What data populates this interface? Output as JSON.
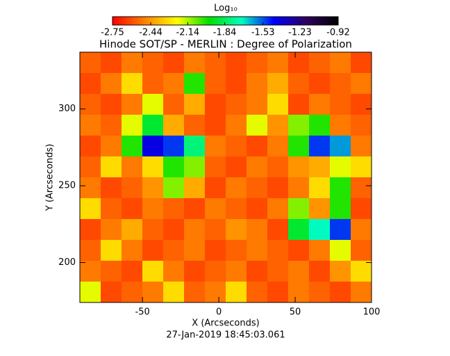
{
  "chart_data": {
    "type": "heatmap",
    "title": "Hinode SOT/SP - MERLIN : Degree of Polarization",
    "x_label": "X (Arcseconds)",
    "y_label": "Y (Arcseconds)",
    "footer": "27-Jan-2019 18:45:03.061",
    "colorbar_label": "Log₁₀",
    "clim": [
      -2.75,
      -0.92
    ],
    "cticks": [
      -2.75,
      -2.44,
      -2.14,
      -1.84,
      -1.53,
      -1.23,
      -0.92
    ],
    "colormap": [
      "#ff0000",
      "#ff8000",
      "#ffff00",
      "#00e000",
      "#00ffc0",
      "#0000ff",
      "#300060",
      "#000000"
    ],
    "xlim": [
      -91,
      100
    ],
    "ylim": [
      174,
      337
    ],
    "xticks": [
      -50,
      0,
      50,
      100
    ],
    "yticks": [
      200,
      250,
      300
    ],
    "z": [
      [
        -2.55,
        -2.6,
        -2.5,
        -2.55,
        -2.6,
        -2.5,
        -2.55,
        -2.6,
        -2.55,
        -2.5,
        -2.6,
        -2.55,
        -2.5,
        -2.6
      ],
      [
        -2.6,
        -2.5,
        -2.3,
        -2.55,
        -2.5,
        -2.0,
        -2.55,
        -2.6,
        -2.5,
        -2.4,
        -2.55,
        -2.6,
        -2.55,
        -2.5
      ],
      [
        -2.55,
        -2.6,
        -2.5,
        -2.2,
        -2.55,
        -2.4,
        -2.6,
        -2.55,
        -2.5,
        -2.3,
        -2.6,
        -2.5,
        -2.55,
        -2.6
      ],
      [
        -2.5,
        -2.55,
        -2.2,
        -1.9,
        -2.4,
        -2.55,
        -2.6,
        -2.5,
        -2.2,
        -2.45,
        -2.1,
        -2.0,
        -2.5,
        -2.55
      ],
      [
        -2.6,
        -2.5,
        -2.0,
        -1.4,
        -1.5,
        -1.8,
        -2.5,
        -2.55,
        -2.6,
        -2.5,
        -2.0,
        -1.5,
        -1.6,
        -2.5
      ],
      [
        -2.55,
        -2.3,
        -2.5,
        -2.3,
        -2.0,
        -2.1,
        -2.55,
        -2.6,
        -2.5,
        -2.55,
        -2.45,
        -2.4,
        -2.2,
        -2.3
      ],
      [
        -2.5,
        -2.6,
        -2.55,
        -2.45,
        -2.1,
        -2.4,
        -2.6,
        -2.5,
        -2.55,
        -2.6,
        -2.5,
        -2.3,
        -2.0,
        -2.55
      ],
      [
        -2.3,
        -2.55,
        -2.6,
        -2.5,
        -2.55,
        -2.6,
        -2.5,
        -2.55,
        -2.6,
        -2.5,
        -2.1,
        -2.45,
        -2.0,
        -2.6
      ],
      [
        -2.6,
        -2.5,
        -2.4,
        -2.55,
        -2.6,
        -2.5,
        -2.55,
        -2.45,
        -2.5,
        -2.6,
        -1.9,
        -1.7,
        -1.5,
        -2.5
      ],
      [
        -2.55,
        -2.3,
        -2.5,
        -2.6,
        -2.55,
        -2.5,
        -2.6,
        -2.55,
        -2.5,
        -2.55,
        -2.6,
        -2.5,
        -2.2,
        -2.55
      ],
      [
        -2.5,
        -2.55,
        -2.6,
        -2.3,
        -2.5,
        -2.6,
        -2.55,
        -2.5,
        -2.6,
        -2.55,
        -2.5,
        -2.6,
        -2.45,
        -2.3
      ],
      [
        -2.2,
        -2.6,
        -2.55,
        -2.5,
        -2.3,
        -2.55,
        -2.5,
        -2.3,
        -2.55,
        -2.6,
        -2.5,
        -2.55,
        -2.6,
        -2.5
      ]
    ]
  }
}
